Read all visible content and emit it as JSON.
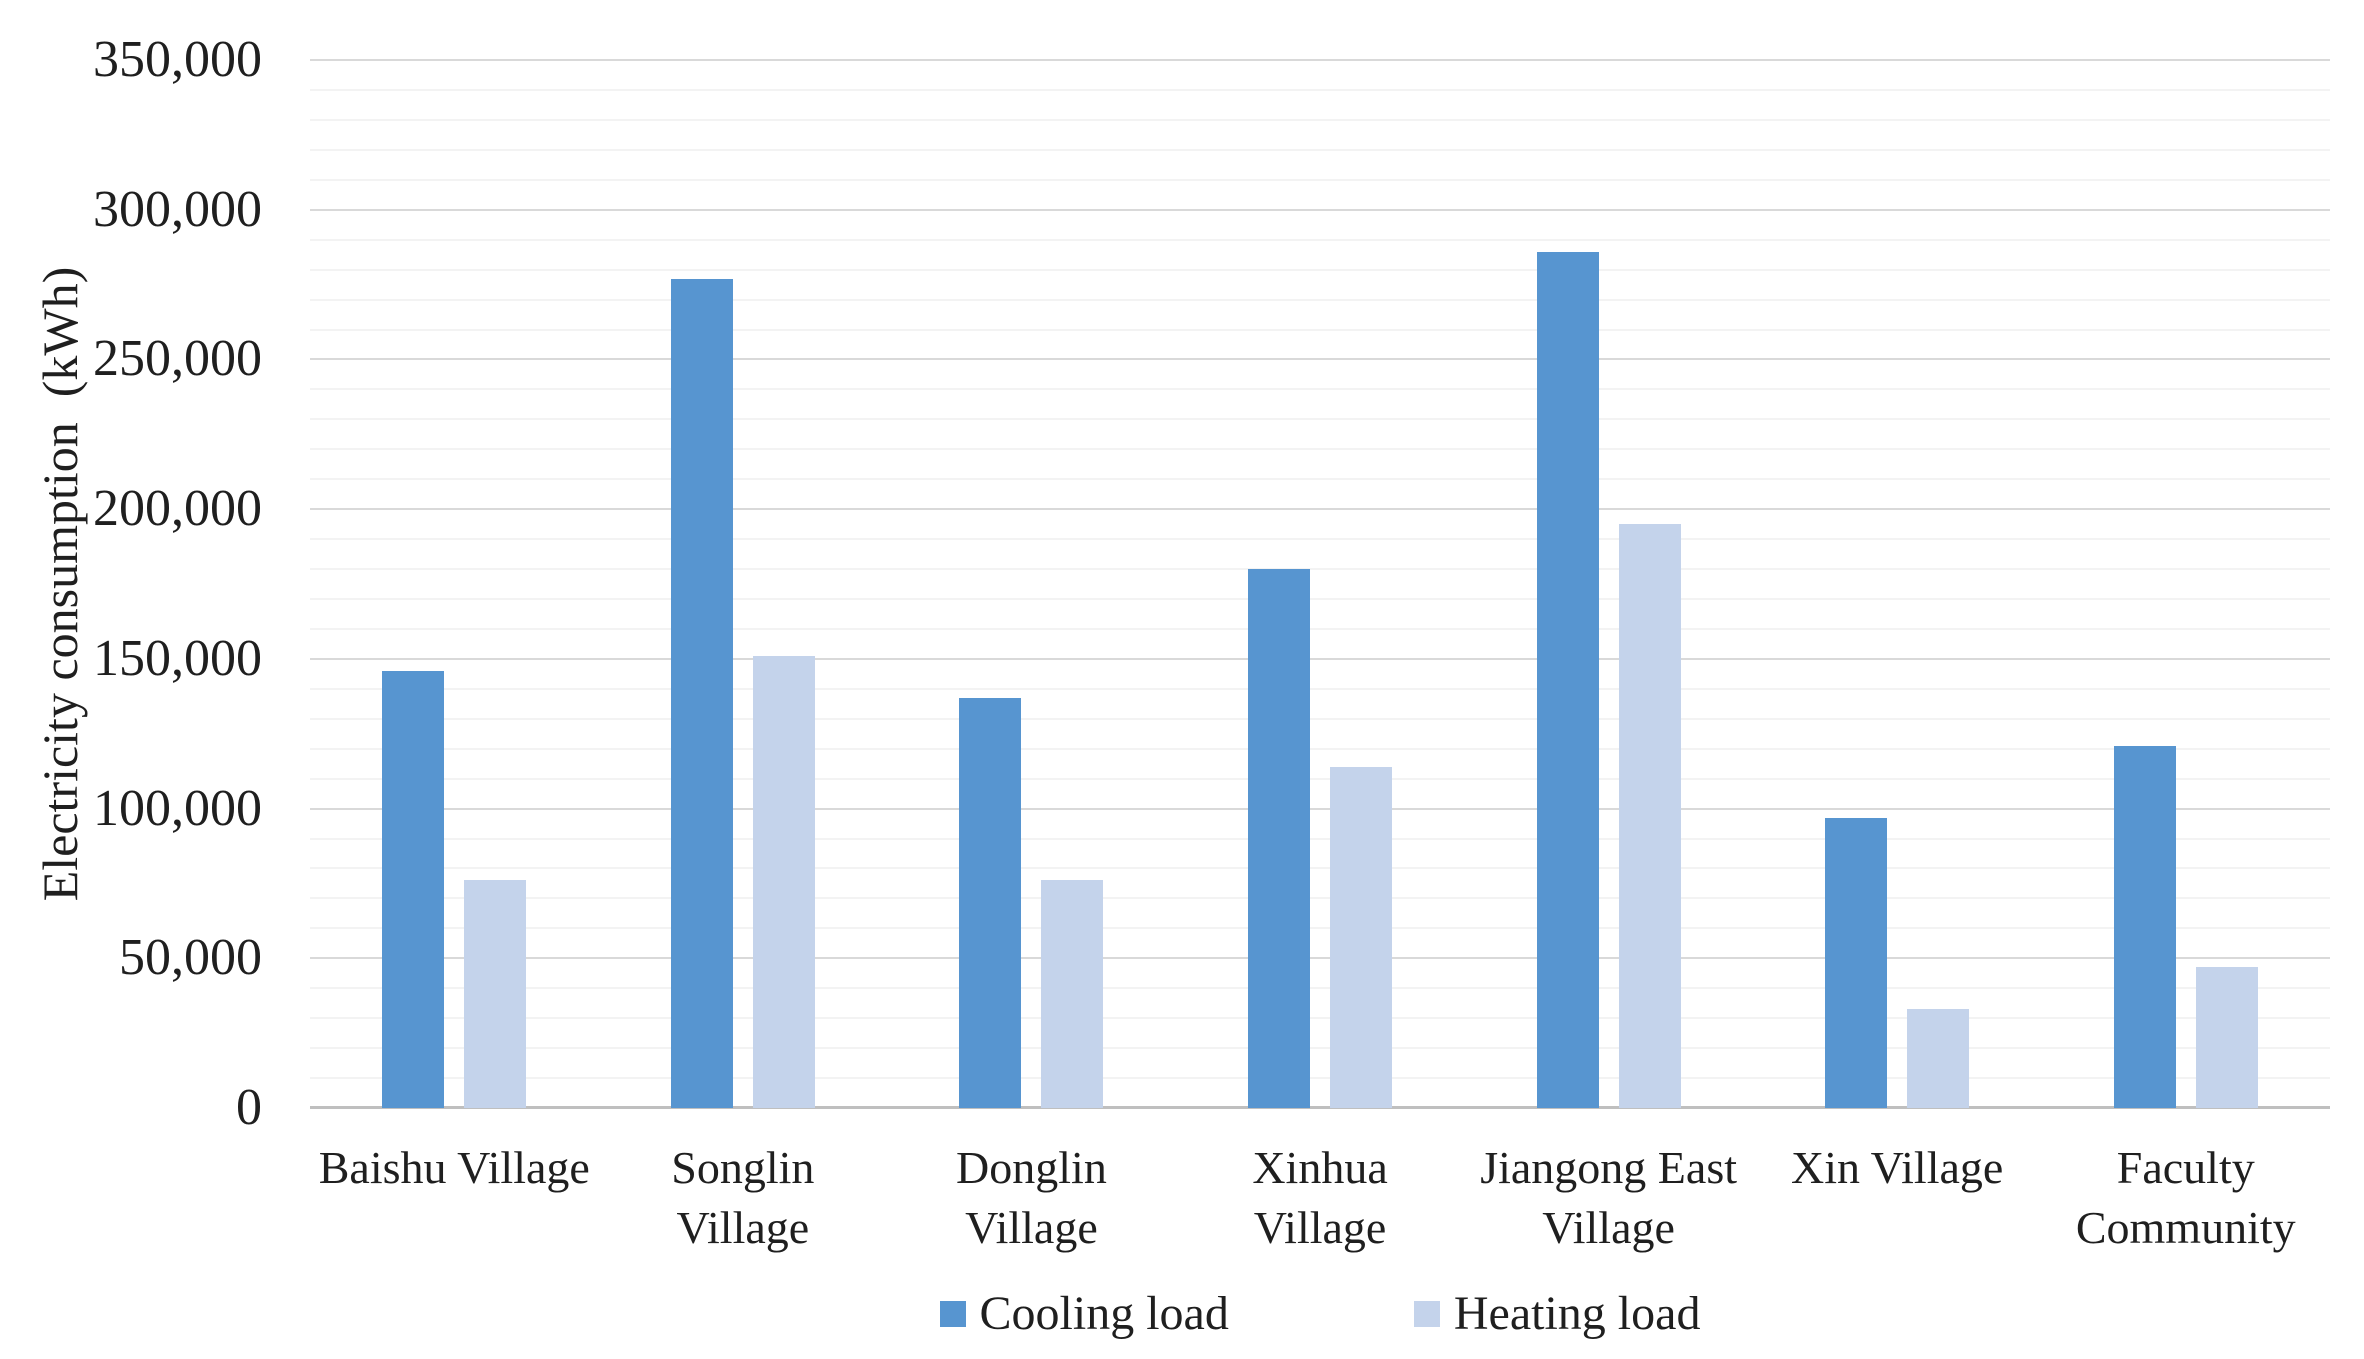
{
  "chart_data": {
    "type": "bar",
    "title": "",
    "ylabel": "Electricity consumption  (kWh)",
    "xlabel": "",
    "categories": [
      "Baishu Village",
      "Songlin\nVillage",
      "Donglin\nVillage",
      "Xinhua\nVillage",
      "Jiangong East\nVillage",
      "Xin Village",
      "Faculty\nCommunity"
    ],
    "series": [
      {
        "name": "Cooling load",
        "color": "#5795D0",
        "values": [
          146000,
          277000,
          137000,
          180000,
          286000,
          97000,
          121000
        ]
      },
      {
        "name": "Heating load",
        "color": "#C4D3EB",
        "values": [
          76000,
          151000,
          76000,
          114000,
          195000,
          33000,
          47000
        ]
      }
    ],
    "ylim": [
      0,
      350000
    ],
    "y_major_step": 50000,
    "y_minor_step": 10000,
    "y_ticks": [
      {
        "value": 0,
        "label": "0"
      },
      {
        "value": 50000,
        "label": "50,000"
      },
      {
        "value": 100000,
        "label": "100,000"
      },
      {
        "value": 150000,
        "label": "150,000"
      },
      {
        "value": 200000,
        "label": "200,000"
      },
      {
        "value": 250000,
        "label": "250,000"
      },
      {
        "value": 300000,
        "label": "300,000"
      },
      {
        "value": 350000,
        "label": "350,000"
      }
    ],
    "grid": "horizontal, minor every 10,000, major every 50,000",
    "legend_position": "bottom"
  },
  "colors": {
    "background": "#FFFFFF",
    "grid_minor": "#F3F3F3",
    "grid_major": "#D9D9D9",
    "axis_line": "#BFBFBF",
    "text": "#1F1F1F"
  }
}
